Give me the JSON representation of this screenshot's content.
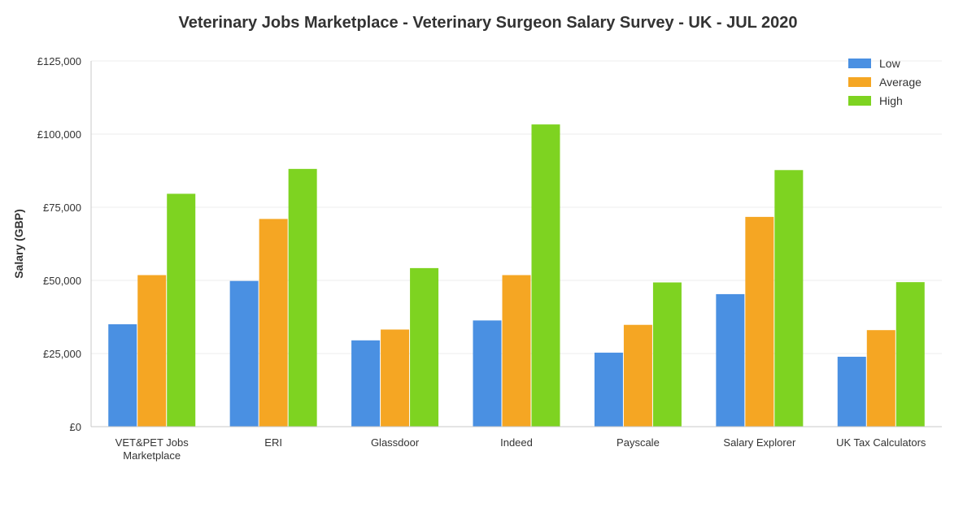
{
  "chart_data": {
    "type": "bar",
    "title": "Veterinary Jobs Marketplace - Veterinary Surgeon Salary Survey - UK - JUL 2020",
    "xlabel": "",
    "ylabel": "Salary (GBP)",
    "ylim": [
      0,
      125000
    ],
    "yticks": [
      0,
      25000,
      50000,
      75000,
      100000,
      125000
    ],
    "ytick_labels": [
      "£0",
      "£25,000",
      "£50,000",
      "£75,000",
      "£100,000",
      "£125,000"
    ],
    "grid": true,
    "legend_position": "top-right",
    "categories": [
      [
        "VET&PET Jobs",
        "Marketplace"
      ],
      [
        "ERI"
      ],
      [
        "Glassdoor"
      ],
      [
        "Indeed"
      ],
      [
        "Payscale"
      ],
      [
        "Salary Explorer"
      ],
      [
        "UK Tax Calculators"
      ]
    ],
    "series": [
      {
        "name": "Low",
        "color": "#4a90e2",
        "values": [
          35000,
          49800,
          29500,
          36300,
          25300,
          45300,
          23900
        ]
      },
      {
        "name": "Average",
        "color": "#f5a623",
        "values": [
          51800,
          71000,
          33200,
          51800,
          34800,
          71700,
          33000
        ]
      },
      {
        "name": "High",
        "color": "#7ed321",
        "values": [
          79600,
          88100,
          54200,
          103300,
          49300,
          87700,
          49400
        ]
      }
    ]
  }
}
